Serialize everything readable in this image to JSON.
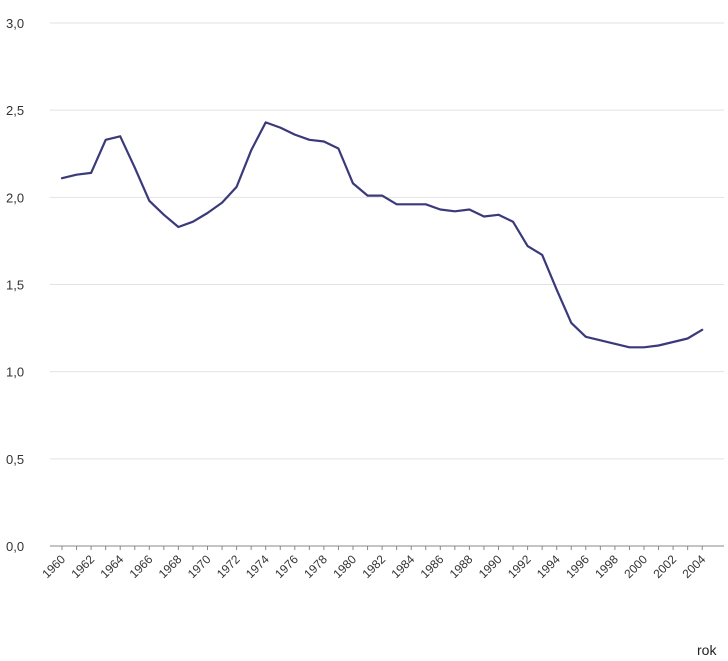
{
  "chart_data": {
    "type": "line",
    "title": "",
    "xlabel": "rok",
    "ylabel": "",
    "ylim": [
      0,
      3
    ],
    "y_ticks": [
      "0,0",
      "0,5",
      "1,0",
      "1,5",
      "2,0",
      "2,5",
      "3,0"
    ],
    "x_tick_labels": [
      "1960",
      "1962",
      "1964",
      "1966",
      "1968",
      "1970",
      "1972",
      "1974",
      "1976",
      "1978",
      "1980",
      "1982",
      "1984",
      "1986",
      "1988",
      "1990",
      "1992",
      "1994",
      "1996",
      "1998",
      "2000",
      "2002",
      "2004"
    ],
    "grid": "horizontal",
    "x": [
      1960,
      1961,
      1962,
      1963,
      1964,
      1965,
      1966,
      1967,
      1968,
      1969,
      1970,
      1971,
      1972,
      1973,
      1974,
      1975,
      1976,
      1977,
      1978,
      1979,
      1980,
      1981,
      1982,
      1983,
      1984,
      1985,
      1986,
      1987,
      1988,
      1989,
      1990,
      1991,
      1992,
      1993,
      1994,
      1995,
      1996,
      1997,
      1998,
      1999,
      2000,
      2001,
      2002,
      2003,
      2004
    ],
    "series": [
      {
        "color": "#3a3a7a",
        "values": [
          2.11,
          2.13,
          2.14,
          2.33,
          2.35,
          2.17,
          1.98,
          1.9,
          1.83,
          1.86,
          1.91,
          1.97,
          2.06,
          2.27,
          2.43,
          2.4,
          2.36,
          2.33,
          2.32,
          2.28,
          2.08,
          2.01,
          2.01,
          1.96,
          1.96,
          1.96,
          1.93,
          1.92,
          1.93,
          1.89,
          1.9,
          1.86,
          1.72,
          1.67,
          1.47,
          1.28,
          1.2,
          1.18,
          1.16,
          1.14,
          1.14,
          1.15,
          1.17,
          1.19,
          1.24
        ]
      }
    ]
  }
}
